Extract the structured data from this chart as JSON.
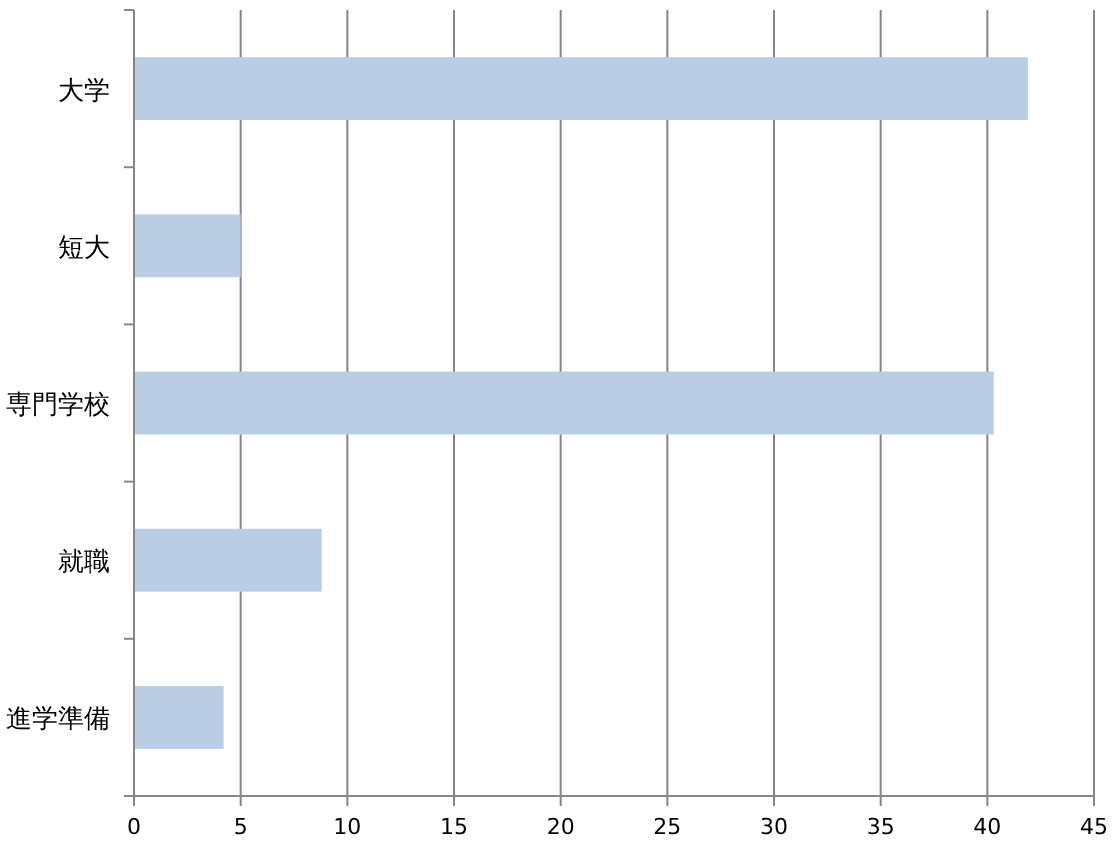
{
  "chart_data": {
    "type": "bar",
    "orientation": "horizontal",
    "categories": [
      "大学",
      "短大",
      "専門学校",
      "就職",
      "進学準備"
    ],
    "values": [
      41.9,
      5.0,
      40.3,
      8.8,
      4.2
    ],
    "color": "#b9cde5",
    "xlim": [
      0,
      45
    ],
    "xticks": [
      0,
      5,
      10,
      15,
      20,
      25,
      30,
      35,
      40,
      45
    ],
    "grid": "x"
  }
}
